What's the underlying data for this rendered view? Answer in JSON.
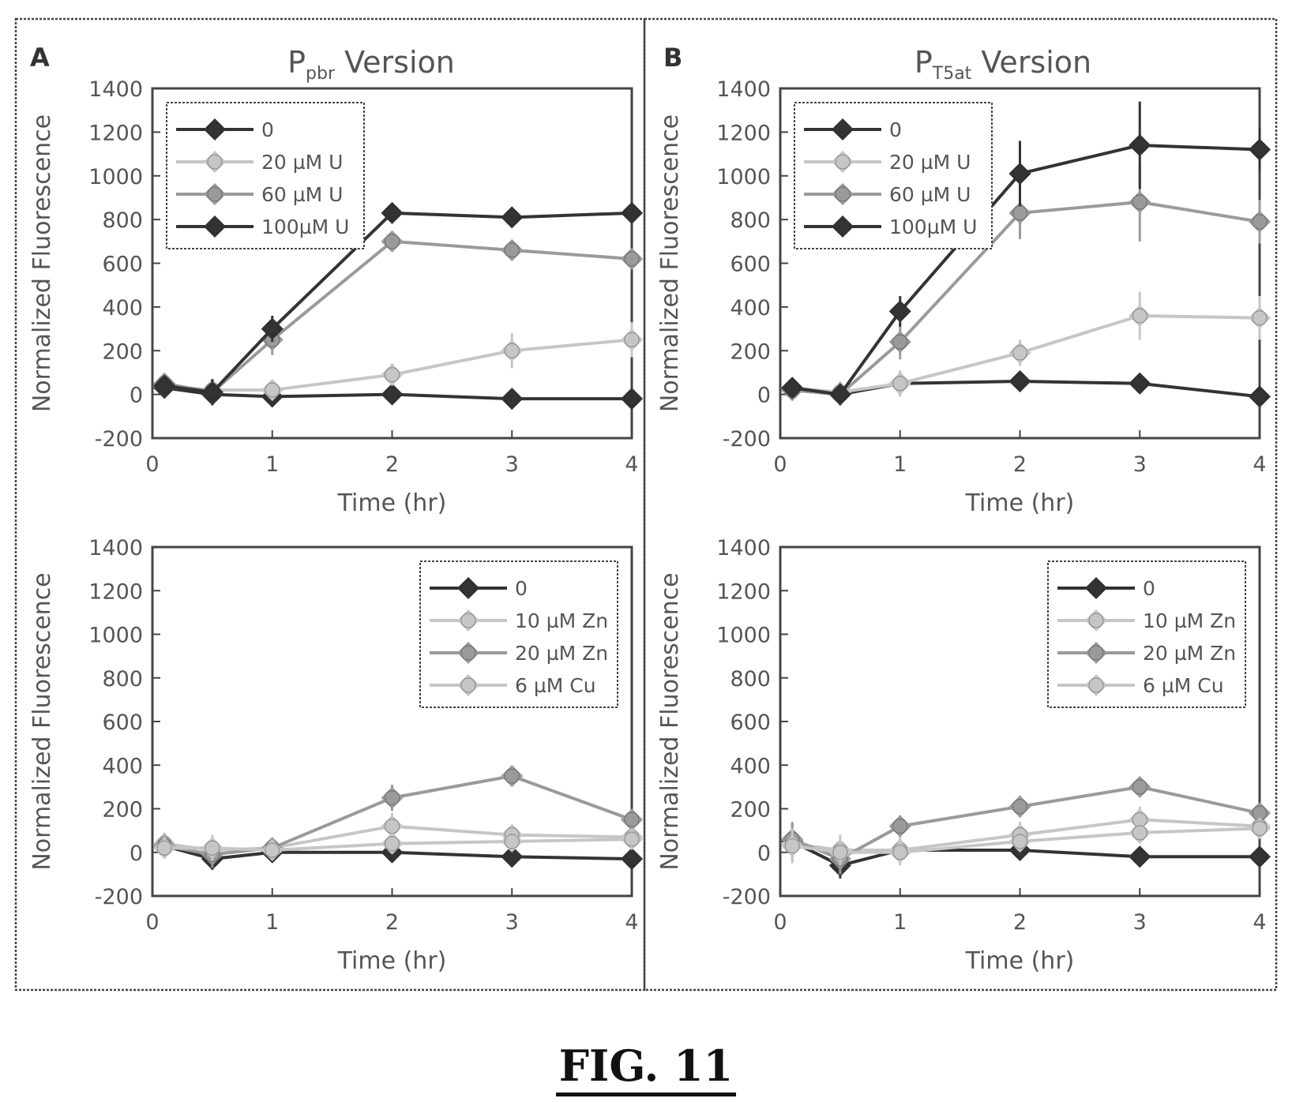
{
  "figure_caption": "FIG. 11",
  "panel_letters": [
    "A",
    "B"
  ],
  "colors": {
    "frame": "#444444",
    "black_series": "#333333",
    "gray_series": "#9a9a9a",
    "light_series": "#c6c6c6",
    "text": "#555555"
  },
  "chart_data": [
    {
      "id": "A-top",
      "type": "line",
      "panel": "A",
      "title_main": "P",
      "title_sub": "pbr",
      "title_rest": " Version",
      "xlabel": "Time (hr)",
      "ylabel": "Normalized Fluorescence",
      "xlim": [
        0,
        4
      ],
      "ylim": [
        -200,
        1400
      ],
      "xticks": [
        0,
        1,
        2,
        3,
        4
      ],
      "yticks": [
        -200,
        0,
        200,
        400,
        600,
        800,
        1000,
        1200,
        1400
      ],
      "legend_position": "top-left",
      "series": [
        {
          "name": "0",
          "style": "black",
          "x": [
            0.1,
            0.5,
            1,
            2,
            3,
            4
          ],
          "y": [
            30,
            0,
            -10,
            0,
            -20,
            -20
          ],
          "err": [
            30,
            40,
            20,
            20,
            20,
            20
          ]
        },
        {
          "name": "20 µM U",
          "style": "light",
          "x": [
            0.1,
            0.5,
            1,
            2,
            3,
            4
          ],
          "y": [
            40,
            20,
            20,
            90,
            200,
            250
          ],
          "err": [
            30,
            50,
            30,
            50,
            80,
            80
          ]
        },
        {
          "name": "60 µM U",
          "style": "gray",
          "x": [
            0.1,
            0.5,
            1,
            2,
            3,
            4
          ],
          "y": [
            50,
            10,
            250,
            700,
            660,
            620
          ],
          "err": [
            30,
            60,
            70,
            40,
            30,
            30
          ]
        },
        {
          "name": "100µM U",
          "style": "black",
          "x": [
            0.1,
            0.5,
            1,
            2,
            3,
            4
          ],
          "y": [
            40,
            10,
            300,
            830,
            810,
            830
          ],
          "err": [
            30,
            60,
            60,
            30,
            30,
            30
          ]
        }
      ]
    },
    {
      "id": "B-top",
      "type": "line",
      "panel": "B",
      "title_main": "P",
      "title_sub": "T5at",
      "title_rest": " Version",
      "xlabel": "Time (hr)",
      "ylabel": "Normalized Fluorescence",
      "xlim": [
        0,
        4
      ],
      "ylim": [
        -200,
        1400
      ],
      "xticks": [
        0,
        1,
        2,
        3,
        4
      ],
      "yticks": [
        -200,
        0,
        200,
        400,
        600,
        800,
        1000,
        1200,
        1400
      ],
      "legend_position": "top-left",
      "series": [
        {
          "name": "0",
          "style": "black",
          "x": [
            0.1,
            0.5,
            1,
            2,
            3,
            4
          ],
          "y": [
            20,
            0,
            50,
            60,
            50,
            -10
          ],
          "err": [
            40,
            40,
            50,
            30,
            30,
            30
          ]
        },
        {
          "name": "20 µM U",
          "style": "light",
          "x": [
            0.1,
            0.5,
            1,
            2,
            3,
            4
          ],
          "y": [
            30,
            10,
            50,
            190,
            360,
            350
          ],
          "err": [
            40,
            50,
            60,
            60,
            110,
            100
          ]
        },
        {
          "name": "60 µM U",
          "style": "gray",
          "x": [
            0.1,
            0.5,
            1,
            2,
            3,
            4
          ],
          "y": [
            20,
            0,
            240,
            830,
            880,
            790
          ],
          "err": [
            40,
            50,
            80,
            120,
            180,
            100
          ]
        },
        {
          "name": "100µM U",
          "style": "black",
          "x": [
            0.1,
            0.5,
            1,
            2,
            3,
            4
          ],
          "y": [
            30,
            0,
            380,
            1010,
            1140,
            1120
          ],
          "err": [
            40,
            50,
            70,
            150,
            200,
            100
          ]
        }
      ]
    },
    {
      "id": "A-bottom",
      "type": "line",
      "panel": "A",
      "xlabel": "Time (hr)",
      "ylabel": "Normalized Fluorescence",
      "xlim": [
        0,
        4
      ],
      "ylim": [
        -200,
        1400
      ],
      "xticks": [
        0,
        1,
        2,
        3,
        4
      ],
      "yticks": [
        -200,
        0,
        200,
        400,
        600,
        800,
        1000,
        1200,
        1400
      ],
      "legend_position": "top-right",
      "series": [
        {
          "name": "0",
          "style": "black",
          "x": [
            0.1,
            0.5,
            1,
            2,
            3,
            4
          ],
          "y": [
            30,
            -30,
            0,
            0,
            -20,
            -30
          ],
          "err": [
            50,
            50,
            30,
            20,
            20,
            20
          ]
        },
        {
          "name": "10 µM Zn",
          "style": "light",
          "x": [
            0.1,
            0.5,
            1,
            2,
            3,
            4
          ],
          "y": [
            40,
            10,
            20,
            120,
            80,
            70
          ],
          "err": [
            50,
            60,
            40,
            60,
            40,
            40
          ]
        },
        {
          "name": "20 µM Zn",
          "style": "gray",
          "x": [
            0.1,
            0.5,
            1,
            2,
            3,
            4
          ],
          "y": [
            30,
            -10,
            20,
            250,
            350,
            150
          ],
          "err": [
            50,
            60,
            40,
            60,
            30,
            40
          ]
        },
        {
          "name": "6 µM Cu",
          "style": "light",
          "x": [
            0.1,
            0.5,
            1,
            2,
            3,
            4
          ],
          "y": [
            20,
            20,
            10,
            40,
            50,
            60
          ],
          "err": [
            50,
            60,
            30,
            40,
            30,
            30
          ]
        }
      ]
    },
    {
      "id": "B-bottom",
      "type": "line",
      "panel": "B",
      "xlabel": "Time (hr)",
      "ylabel": "Normalized Fluorescence",
      "xlim": [
        0,
        4
      ],
      "ylim": [
        -200,
        1400
      ],
      "xticks": [
        0,
        1,
        2,
        3,
        4
      ],
      "yticks": [
        -200,
        0,
        200,
        400,
        600,
        800,
        1000,
        1200,
        1400
      ],
      "legend_position": "top-right",
      "series": [
        {
          "name": "0",
          "style": "black",
          "x": [
            0.1,
            0.5,
            1,
            2,
            3,
            4
          ],
          "y": [
            50,
            -60,
            10,
            10,
            -20,
            -20
          ],
          "err": [
            80,
            60,
            40,
            30,
            20,
            20
          ]
        },
        {
          "name": "10 µM Zn",
          "style": "light",
          "x": [
            0.1,
            0.5,
            1,
            2,
            3,
            4
          ],
          "y": [
            40,
            10,
            10,
            80,
            150,
            120
          ],
          "err": [
            80,
            70,
            60,
            60,
            60,
            50
          ]
        },
        {
          "name": "20 µM Zn",
          "style": "gray",
          "x": [
            0.1,
            0.5,
            1,
            2,
            3,
            4
          ],
          "y": [
            60,
            -30,
            120,
            210,
            300,
            180
          ],
          "err": [
            80,
            70,
            50,
            50,
            40,
            40
          ]
        },
        {
          "name": "6 µM Cu",
          "style": "light",
          "x": [
            0.1,
            0.5,
            1,
            2,
            3,
            4
          ],
          "y": [
            30,
            0,
            0,
            50,
            90,
            110
          ],
          "err": [
            80,
            60,
            60,
            40,
            40,
            40
          ]
        }
      ]
    }
  ]
}
